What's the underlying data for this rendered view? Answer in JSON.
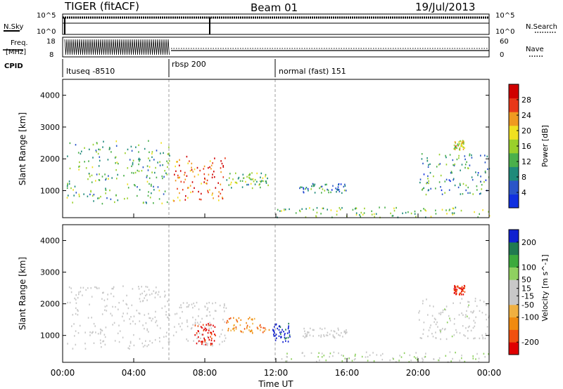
{
  "header": {
    "station": "TIGER (fitACF)",
    "beam": "Beam 01",
    "date": "19/Jul/2013"
  },
  "status_panels": {
    "nsky": {
      "label": "N.Sky",
      "ticks": [
        "10^5",
        "10^0"
      ]
    },
    "nsearch": {
      "label": "N.Search",
      "ticks": [
        "10^5",
        "10^0"
      ]
    },
    "freq": {
      "label": "Freq. [MHz]",
      "ticks": [
        "18",
        "8"
      ]
    },
    "nave": {
      "label": "Nave",
      "ticks": [
        "60",
        "0"
      ]
    },
    "cpid": {
      "label": "CPID",
      "segments": [
        {
          "name": "ltuseq -8510",
          "start_hour": 0,
          "end_hour": 6
        },
        {
          "name": "rbsp 200",
          "start_hour": 6,
          "end_hour": 12
        },
        {
          "name": "normal (fast) 151",
          "start_hour": 12,
          "end_hour": 24
        }
      ]
    }
  },
  "chart_data": [
    {
      "type": "heatmap",
      "panel": "power",
      "ylabel": "Slant Range [km]",
      "xlabel": "",
      "xlim": [
        0,
        24
      ],
      "ylim": [
        150,
        4500
      ],
      "yticks": [
        1000,
        2000,
        3000,
        4000
      ],
      "colorbar": {
        "label": "Power [dB]",
        "ticks": [
          28,
          24,
          20,
          16,
          12,
          8,
          4
        ],
        "range": [
          0,
          32
        ],
        "colors": [
          "#1030e0",
          "#2a55c8",
          "#1f8a7a",
          "#4bb04b",
          "#9ad02b",
          "#f0e020",
          "#f09a20",
          "#e83818",
          "#d00000"
        ]
      },
      "regions": [
        {
          "name": "ltuseq scatter",
          "t": [
            0.2,
            6.0
          ],
          "r": [
            600,
            2600
          ],
          "value": 12
        },
        {
          "name": "rbsp F-region echo",
          "t": [
            6.2,
            9.2
          ],
          "r": [
            700,
            2100
          ],
          "value": 26
        },
        {
          "name": "post-rbsp echo",
          "t": [
            9.2,
            11.6
          ],
          "r": [
            1100,
            1600
          ],
          "value": 14
        },
        {
          "name": "afternoon echo",
          "t": [
            13.3,
            16.0
          ],
          "r": [
            950,
            1250
          ],
          "value": 8
        },
        {
          "name": "near-range band",
          "t": [
            12.0,
            24.0
          ],
          "r": [
            180,
            500
          ],
          "value": 14
        },
        {
          "name": "evening arc",
          "t": [
            20.0,
            24.0
          ],
          "r": [
            900,
            2200
          ],
          "value": 10
        },
        {
          "name": "high-range patch",
          "t": [
            22.0,
            22.6
          ],
          "r": [
            2300,
            2600
          ],
          "value": 18
        }
      ]
    },
    {
      "type": "heatmap",
      "panel": "velocity",
      "ylabel": "Slant Range [km]",
      "xlabel": "Time UT",
      "xlim": [
        0,
        24
      ],
      "ylim": [
        150,
        4500
      ],
      "yticks": [
        1000,
        2000,
        3000,
        4000
      ],
      "xticks": [
        "00:00",
        "04:00",
        "08:00",
        "12:00",
        "16:00",
        "20:00",
        "00:00"
      ],
      "xtick_hours": [
        0,
        4,
        8,
        12,
        16,
        20,
        24
      ],
      "colorbar": {
        "label": "Velocity [m s^-1]",
        "ticks": [
          200,
          100,
          50,
          15,
          -15,
          -50,
          -100,
          -200
        ],
        "range": [
          -250,
          250
        ],
        "colors": [
          "#e00000",
          "#f05010",
          "#f08a10",
          "#f0b040",
          "#c8c8c8",
          "#c8c8c8",
          "#8fd060",
          "#3caa3c",
          "#207a50",
          "#1020d0"
        ]
      },
      "regions": [
        {
          "name": "ltuseq scatter",
          "t": [
            0.2,
            6.0
          ],
          "r": [
            600,
            2600
          ],
          "value": 0
        },
        {
          "name": "rbsp echo",
          "t": [
            6.2,
            9.2
          ],
          "r": [
            700,
            2100
          ],
          "value": -5
        },
        {
          "name": "rbsp red core",
          "t": [
            7.4,
            8.6
          ],
          "r": [
            700,
            1400
          ],
          "value": -220
        },
        {
          "name": "post-rbsp echo",
          "t": [
            9.2,
            11.6
          ],
          "r": [
            1100,
            1600
          ],
          "value": -120
        },
        {
          "name": "blue patch",
          "t": [
            11.8,
            12.8
          ],
          "r": [
            800,
            1400
          ],
          "value": 220
        },
        {
          "name": "afternoon echo",
          "t": [
            13.3,
            16.0
          ],
          "r": [
            950,
            1250
          ],
          "value": 0
        },
        {
          "name": "near-range band",
          "t": [
            12.0,
            24.0
          ],
          "r": [
            180,
            500
          ],
          "value": 40
        },
        {
          "name": "evening arc",
          "t": [
            20.0,
            24.0
          ],
          "r": [
            900,
            2200
          ],
          "value": 10
        },
        {
          "name": "high-range patch",
          "t": [
            22.0,
            22.6
          ],
          "r": [
            2300,
            2600
          ],
          "value": -200
        }
      ]
    }
  ]
}
